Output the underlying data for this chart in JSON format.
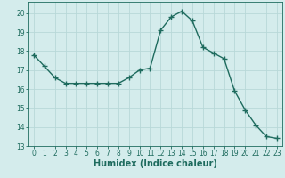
{
  "x": [
    0,
    1,
    2,
    3,
    4,
    5,
    6,
    7,
    8,
    9,
    10,
    11,
    12,
    13,
    14,
    15,
    16,
    17,
    18,
    19,
    20,
    21,
    22,
    23
  ],
  "y": [
    17.8,
    17.2,
    16.6,
    16.3,
    16.3,
    16.3,
    16.3,
    16.3,
    16.3,
    16.6,
    17.0,
    17.1,
    19.1,
    19.8,
    20.1,
    19.6,
    18.2,
    17.9,
    17.6,
    15.9,
    14.9,
    14.1,
    13.5,
    13.4
  ],
  "line_color": "#1e6b5e",
  "marker": "+",
  "markersize": 4,
  "linewidth": 1.0,
  "bg_color": "#d4ecec",
  "grid_color": "#b8d8d8",
  "xlabel": "Humidex (Indice chaleur)",
  "xlabel_fontsize": 7,
  "ylim": [
    13,
    20.6
  ],
  "xlim": [
    -0.5,
    23.5
  ],
  "yticks": [
    13,
    14,
    15,
    16,
    17,
    18,
    19,
    20
  ],
  "xticks": [
    0,
    1,
    2,
    3,
    4,
    5,
    6,
    7,
    8,
    9,
    10,
    11,
    12,
    13,
    14,
    15,
    16,
    17,
    18,
    19,
    20,
    21,
    22,
    23
  ],
  "tick_fontsize": 5.5
}
